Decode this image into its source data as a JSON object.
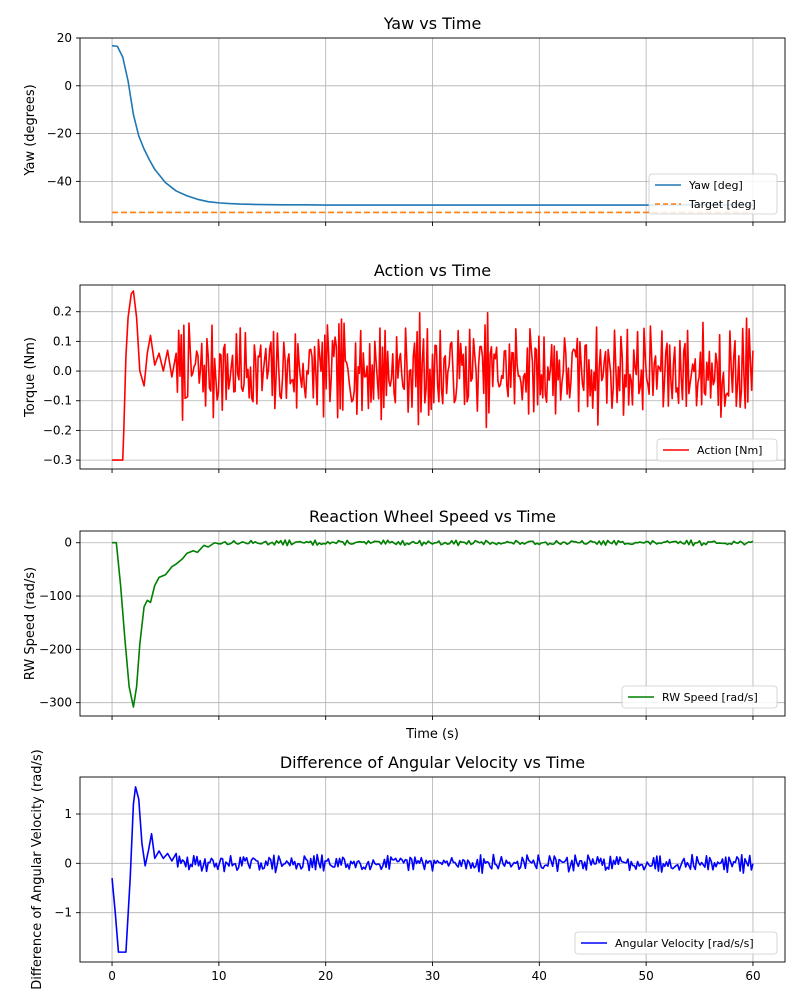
{
  "chart_data": [
    {
      "type": "line",
      "title": "Yaw vs Time",
      "xlabel": "",
      "ylabel": "Yaw (degrees)",
      "xlim": [
        -3,
        63
      ],
      "ylim": [
        -57,
        20
      ],
      "xticks": [
        0,
        10,
        20,
        30,
        40,
        50,
        60
      ],
      "xticklabels": false,
      "yticks": [
        -40,
        -20,
        0,
        20
      ],
      "grid": true,
      "legend": "lower-right",
      "series": [
        {
          "name": "Yaw [deg]",
          "color": "#1f77b4",
          "dash": "solid",
          "x": [
            0,
            0.5,
            1,
            1.5,
            2,
            2.5,
            3,
            3.5,
            4,
            5,
            6,
            7,
            8,
            9,
            10,
            11,
            12,
            14,
            16,
            18,
            20,
            25,
            30,
            35,
            40,
            45,
            50,
            55,
            60
          ],
          "y": [
            16.8,
            16.5,
            12,
            2,
            -12,
            -21,
            -26.5,
            -31,
            -35,
            -40.5,
            -44,
            -46,
            -47.5,
            -48.5,
            -49,
            -49.3,
            -49.5,
            -49.7,
            -49.8,
            -49.8,
            -49.9,
            -49.9,
            -49.9,
            -49.9,
            -49.9,
            -49.9,
            -49.9,
            -49.8,
            -49.9
          ]
        },
        {
          "name": "Target [deg]",
          "color": "#ff7f0e",
          "dash": "dashed",
          "x": [
            0,
            60
          ],
          "y": [
            -53,
            -53
          ]
        }
      ]
    },
    {
      "type": "line",
      "title": "Action vs Time",
      "xlabel": "",
      "ylabel": "Torque (Nm)",
      "xlim": [
        -3,
        63
      ],
      "ylim": [
        -0.33,
        0.29
      ],
      "xticks": [
        0,
        10,
        20,
        30,
        40,
        50,
        60
      ],
      "xticklabels": false,
      "yticks": [
        -0.3,
        -0.2,
        -0.1,
        0.0,
        0.1,
        0.2
      ],
      "grid": true,
      "legend": "lower-right",
      "series": [
        {
          "name": "Action [Nm]",
          "color": "#ff0000",
          "dash": "solid",
          "noise": {
            "from": 6.0,
            "step": 0.12,
            "amplitude": 0.16,
            "clip": 0.2,
            "seed": 7
          },
          "x": [
            0,
            0.5,
            1.0,
            1.1,
            1.3,
            1.5,
            1.8,
            2.0,
            2.3,
            2.6,
            3.0,
            3.3,
            3.6,
            4.0,
            4.4,
            4.8,
            5.2,
            5.6,
            6.0
          ],
          "y": [
            -0.3,
            -0.3,
            -0.3,
            -0.2,
            0.05,
            0.18,
            0.26,
            0.27,
            0.18,
            0.0,
            -0.05,
            0.06,
            0.12,
            0.02,
            0.06,
            0.0,
            0.07,
            -0.02,
            0.06
          ]
        }
      ]
    },
    {
      "type": "line",
      "title": "Reaction Wheel Speed vs Time",
      "xlabel": "Time (s)",
      "ylabel": "RW Speed (rad/s)",
      "xlim": [
        -3,
        63
      ],
      "ylim": [
        -325,
        22
      ],
      "xticks": [
        0,
        10,
        20,
        30,
        40,
        50,
        60
      ],
      "xticklabels": false,
      "yticks": [
        -300,
        -200,
        -100,
        0
      ],
      "grid": true,
      "legend": "lower-right",
      "series": [
        {
          "name": "RW Speed [rad/s]",
          "color": "#008000",
          "dash": "solid",
          "noise": {
            "from": 10.0,
            "step": 0.2,
            "amplitude": 4.5,
            "clip": 9,
            "seed": 13
          },
          "x": [
            0,
            0.4,
            0.8,
            1.2,
            1.6,
            2.0,
            2.3,
            2.6,
            3.0,
            3.3,
            3.6,
            4.0,
            4.4,
            5.0,
            5.6,
            6.0,
            6.6,
            7.0,
            7.6,
            8.0,
            8.6,
            9.0,
            9.6,
            10.0
          ],
          "y": [
            0,
            0,
            -80,
            -180,
            -270,
            -308,
            -270,
            -190,
            -120,
            -108,
            -112,
            -80,
            -65,
            -60,
            -45,
            -40,
            -30,
            -20,
            -15,
            -18,
            -5,
            -8,
            0,
            -2
          ]
        }
      ]
    },
    {
      "type": "line",
      "title": "Difference of Angular Velocity vs Time",
      "xlabel": "",
      "ylabel": "Difference of Angular Velocity (rad/s)",
      "xlim": [
        -3,
        63
      ],
      "ylim": [
        -2.0,
        1.75
      ],
      "xticks": [
        0,
        10,
        20,
        30,
        40,
        50,
        60
      ],
      "xticklabels": true,
      "yticks": [
        -1,
        0,
        1
      ],
      "grid": true,
      "legend": "lower-right",
      "series": [
        {
          "name": "Angular Velocity [rad/s/s]",
          "color": "#0000ff",
          "dash": "solid",
          "noise": {
            "from": 6.0,
            "step": 0.15,
            "amplitude": 0.17,
            "clip": 0.3,
            "seed": 29
          },
          "x": [
            0,
            0.3,
            0.6,
            1.0,
            1.3,
            1.7,
            2.0,
            2.2,
            2.5,
            2.8,
            3.1,
            3.4,
            3.7,
            4.0,
            4.4,
            4.8,
            5.2,
            5.6,
            6.0
          ],
          "y": [
            -0.3,
            -1.0,
            -1.8,
            -1.8,
            -1.8,
            -0.3,
            1.2,
            1.55,
            1.3,
            0.4,
            -0.05,
            0.25,
            0.6,
            0.1,
            0.25,
            0.1,
            0.2,
            0.05,
            0.2
          ]
        }
      ]
    }
  ]
}
